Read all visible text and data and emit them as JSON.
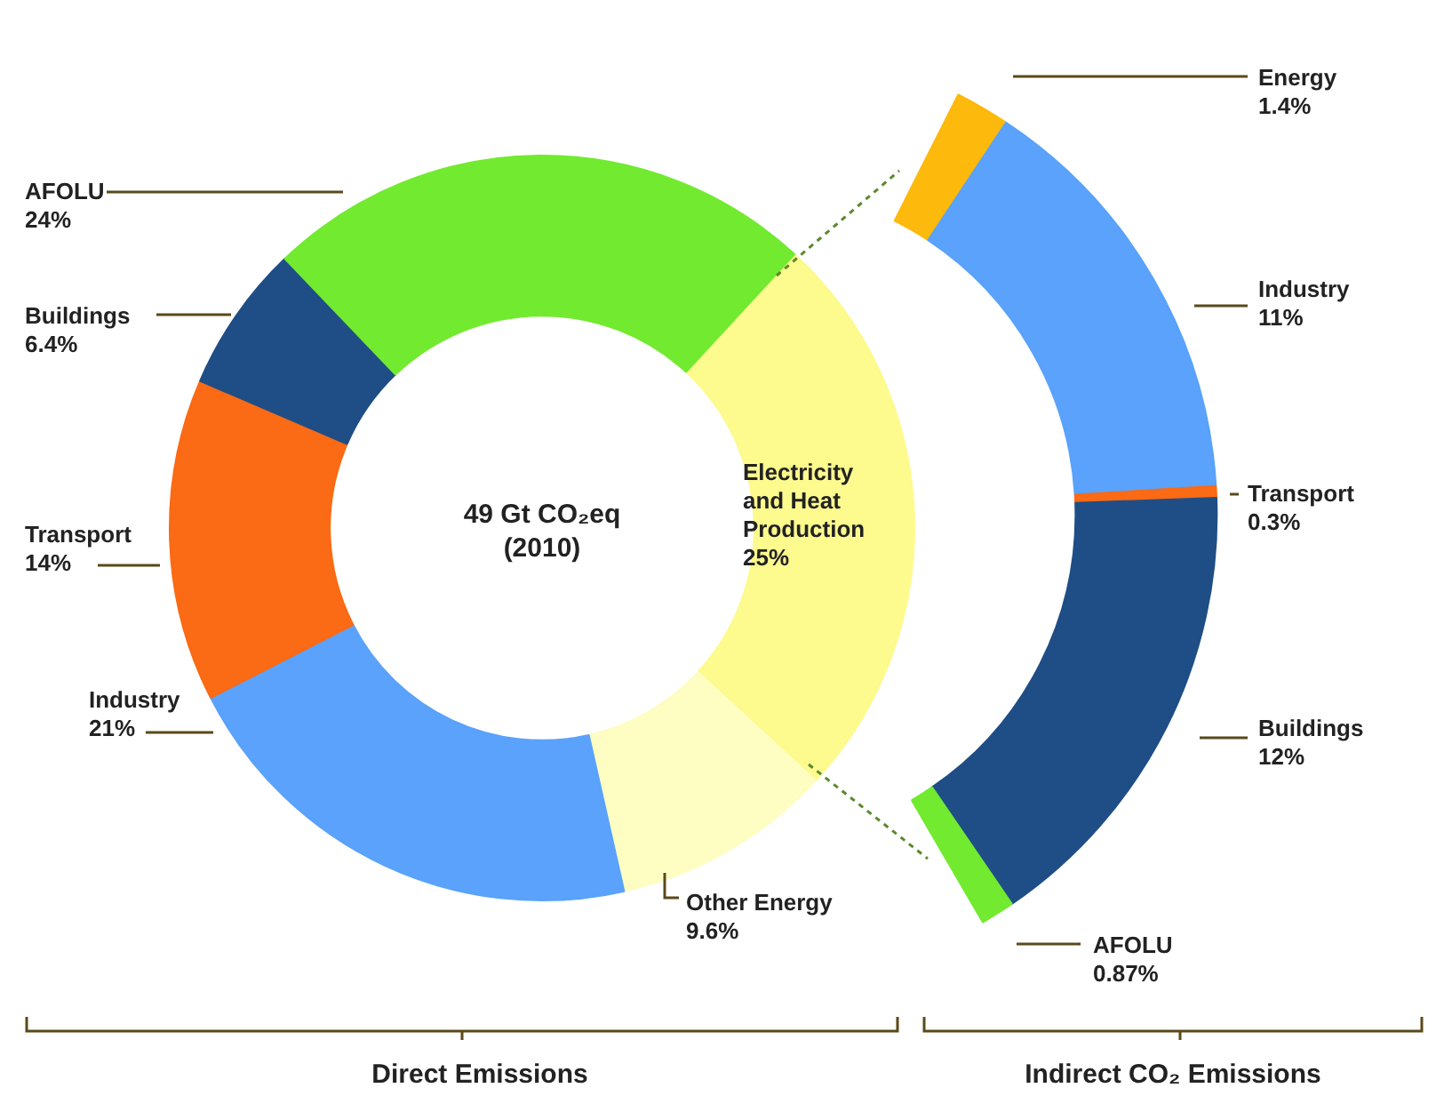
{
  "chart_data": [
    {
      "type": "donut",
      "title": "Direct Emissions",
      "annotations": [
        "49 Gt CO₂eq (2010)"
      ],
      "categories": [
        "Electricity and Heat Production",
        "Other Energy",
        "Industry",
        "Transport",
        "Buildings",
        "AFOLU"
      ],
      "values": [
        25,
        9.6,
        21,
        14,
        6.4,
        24
      ],
      "value_labels": [
        "25%",
        "9.6%",
        "21%",
        "14%",
        "6.4%",
        "24%"
      ],
      "colors": [
        "#fdfa8e",
        "#fefdc2",
        "#5aa2fb",
        "#fb6a14",
        "#1f4e86",
        "#72ea30"
      ]
    },
    {
      "type": "donut",
      "title": "Indirect CO₂ Emissions",
      "categories": [
        "Energy",
        "Industry",
        "Transport",
        "Buildings",
        "AFOLU"
      ],
      "values": [
        1.4,
        11,
        0.3,
        12,
        0.87
      ],
      "value_labels": [
        "1.4%",
        "11%",
        "0.3%",
        "12%",
        "0.87%"
      ],
      "colors": [
        "#fdb90c",
        "#5aa2fb",
        "#fb6a14",
        "#1f4e86",
        "#72ea30"
      ]
    }
  ]
}
